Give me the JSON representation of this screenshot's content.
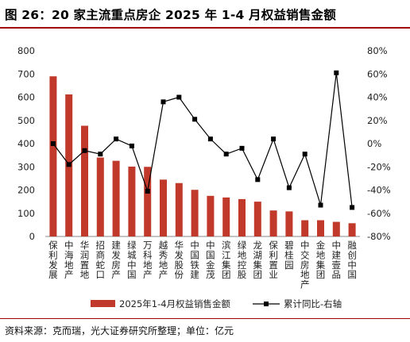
{
  "figure": {
    "title": "图 26：20 家主流重点房企 2025 年 1-4 月权益销售金额",
    "footnote": "资料来源：克而瑞，光大证券研究所整理；单位：亿元"
  },
  "colors": {
    "bar": "#c0392b",
    "line": "#000000",
    "title_rule": "#a00000"
  },
  "chart_data": {
    "type": "bar",
    "categories": [
      "保利发展",
      "中海地产",
      "华润置地",
      "招商蛇口",
      "建发房产",
      "绿城中国",
      "万科地产",
      "越秀地产",
      "华发股份",
      "中国铁建",
      "中国金茂",
      "滨江集团",
      "绿地控股",
      "龙湖集团",
      "保利置业",
      "碧桂园",
      "中交房地产",
      "金地集团",
      "中建壹品",
      "融创中国"
    ],
    "series": [
      {
        "name": "2025年1-4月权益销售金额",
        "type": "bar",
        "axis": "left",
        "values": [
          690,
          612,
          477,
          340,
          326,
          301,
          300,
          245,
          230,
          201,
          175,
          168,
          161,
          150,
          112,
          108,
          70,
          70,
          63,
          57
        ]
      },
      {
        "name": "累计同比-右轴",
        "type": "line",
        "axis": "right",
        "values": [
          0,
          -18,
          -6,
          -9,
          4,
          -2,
          -41,
          36,
          40,
          21,
          4,
          -9,
          -4,
          -31,
          4,
          -38,
          -9,
          -53,
          61,
          -55
        ]
      }
    ],
    "y_left": {
      "ylim": [
        0,
        800
      ],
      "ticks": [
        "0",
        "100",
        "200",
        "300",
        "400",
        "500",
        "600",
        "700",
        "800"
      ]
    },
    "y_right": {
      "ylim": [
        -80,
        80
      ],
      "ticks": [
        "-80%",
        "-60%",
        "-40%",
        "-20%",
        "0%",
        "20%",
        "40%",
        "60%",
        "80%"
      ]
    },
    "legend": {
      "placement": "bottom-center"
    },
    "grid": false
  }
}
